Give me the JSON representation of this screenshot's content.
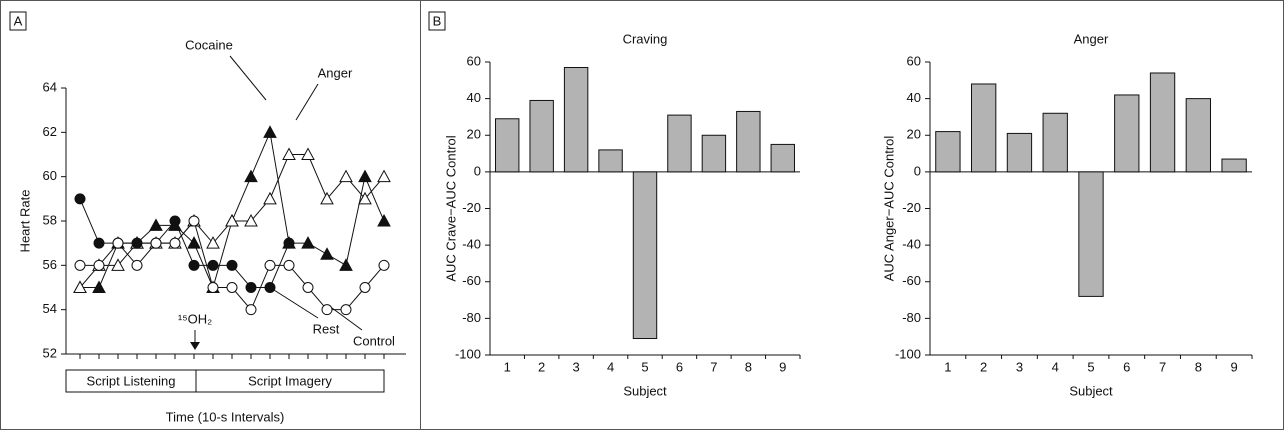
{
  "chart_data": [
    {
      "type": "line",
      "panel_label": "A",
      "x_label": "Time (10-s Intervals)",
      "y_label": "Heart Rate",
      "categories": [
        null,
        null,
        null,
        null,
        null,
        null,
        null,
        null,
        null,
        null,
        null,
        null,
        null,
        null,
        null,
        null,
        null
      ],
      "ylim": [
        52,
        64
      ],
      "yticks": [
        52,
        54,
        56,
        58,
        60,
        62,
        64
      ],
      "series": [
        {
          "name": "Cocaine",
          "color": "#111111",
          "marker": "triangle-filled",
          "values": [
            55,
            55,
            57,
            57,
            57.8,
            57.8,
            57,
            55,
            58,
            60,
            62,
            57,
            57,
            56.5,
            56,
            60,
            58
          ]
        },
        {
          "name": "Anger",
          "color": "#111111",
          "marker": "triangle-open",
          "values": [
            55,
            56,
            56,
            57,
            57,
            57,
            58,
            57,
            58,
            58,
            59,
            61,
            61,
            59,
            60,
            59,
            60
          ]
        },
        {
          "name": "Rest",
          "color": "#111111",
          "marker": "circle-filled",
          "values": [
            59,
            57,
            57,
            57,
            57,
            58,
            56,
            56,
            56,
            55,
            55,
            57,
            null,
            null,
            null,
            null,
            null
          ]
        },
        {
          "name": "Control",
          "color": "#111111",
          "marker": "circle-open",
          "values": [
            56,
            56,
            57,
            56,
            57,
            57,
            58,
            55,
            55,
            54,
            56,
            56,
            55,
            54,
            54,
            55,
            56
          ]
        }
      ],
      "annotations": {
        "injection": "¹⁵OH₂",
        "phase_1": "Script Listening",
        "phase_2": "Script Imagery"
      }
    },
    {
      "type": "bar",
      "panel_label": "B",
      "title": "Craving",
      "x_label": "Subject",
      "y_label": "AUC Crave−AUC Control",
      "categories": [
        "1",
        "2",
        "3",
        "4",
        "5",
        "6",
        "7",
        "8",
        "9"
      ],
      "values": [
        29,
        39,
        57,
        12,
        -91,
        31,
        20,
        33,
        15
      ],
      "color": "#b3b3b3",
      "ylim": [
        -100,
        60
      ],
      "yticks": [
        -100,
        -80,
        -60,
        -40,
        -20,
        0,
        20,
        40,
        60
      ]
    },
    {
      "type": "bar",
      "title": "Anger",
      "x_label": "Subject",
      "y_label": "AUC Anger−AUC Control",
      "categories": [
        "1",
        "2",
        "3",
        "4",
        "5",
        "6",
        "7",
        "8",
        "9"
      ],
      "values": [
        22,
        48,
        21,
        32,
        -68,
        42,
        54,
        40,
        7
      ],
      "color": "#b3b3b3",
      "ylim": [
        -100,
        60
      ],
      "yticks": [
        -100,
        -80,
        -60,
        -40,
        -20,
        0,
        20,
        40,
        60
      ]
    }
  ]
}
